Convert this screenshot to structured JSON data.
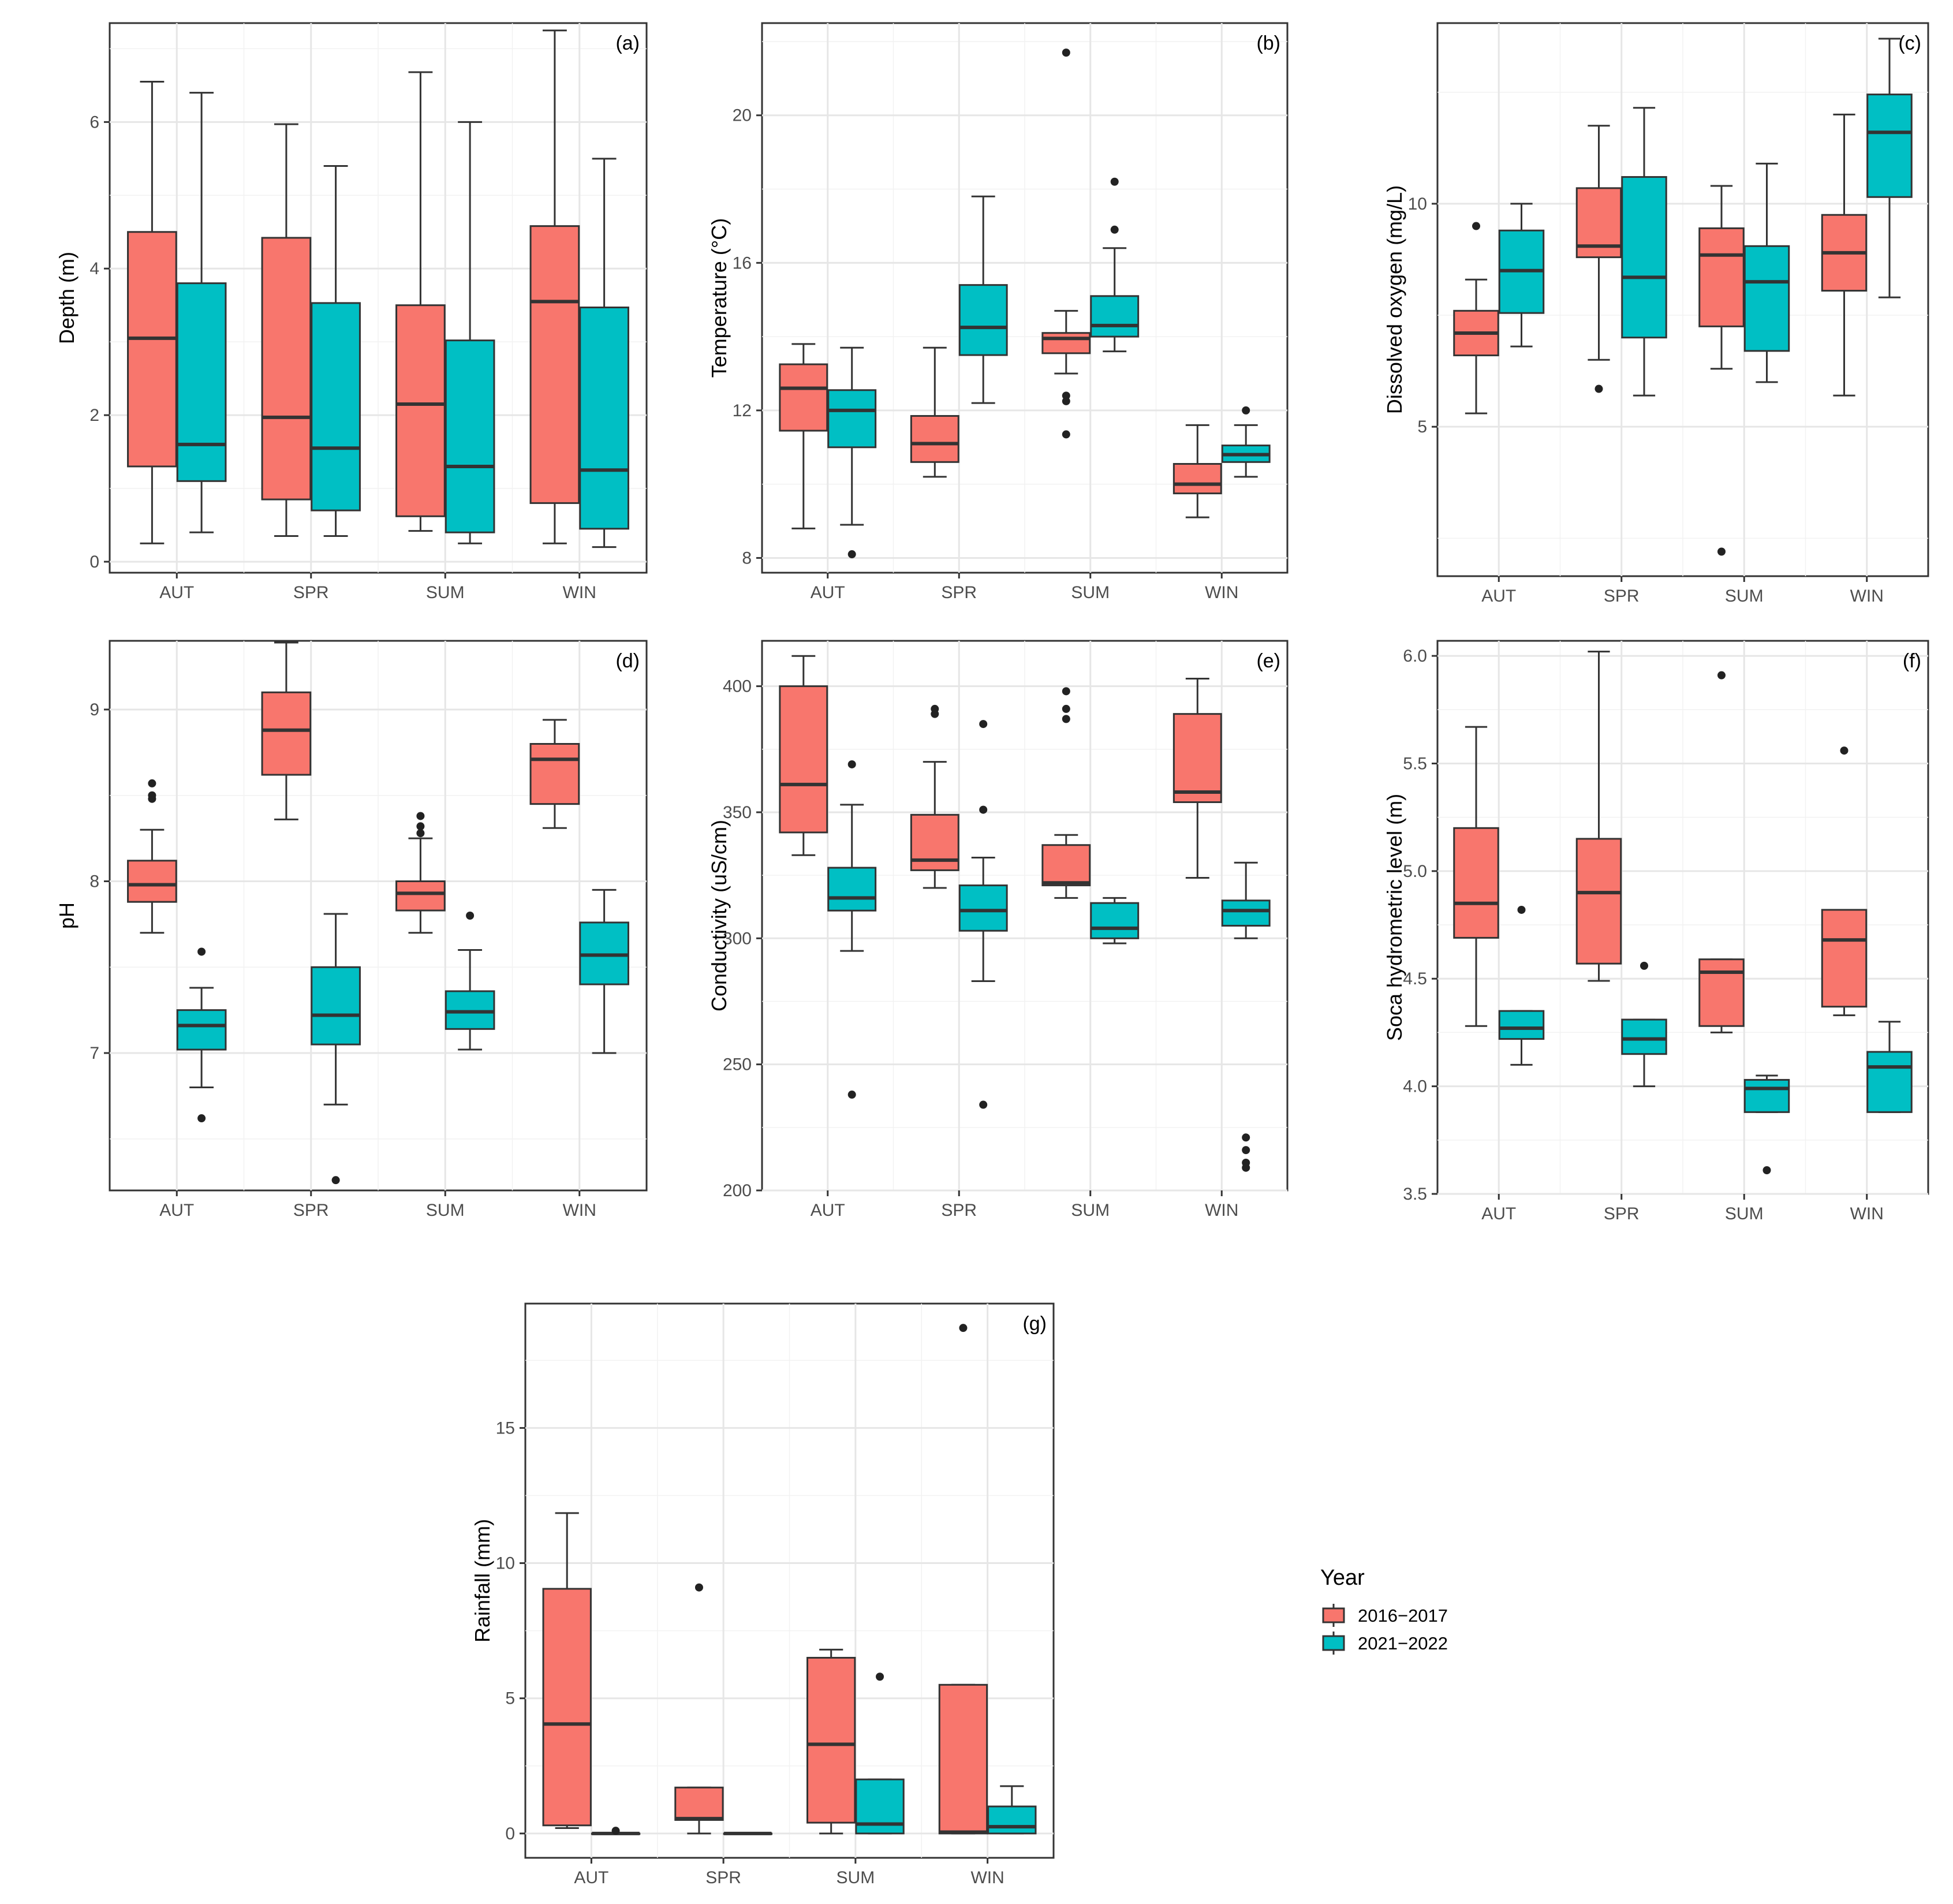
{
  "colors": {
    "s2016": "#F8766D",
    "s2021": "#00BFC4",
    "line": "#333333",
    "point": "#222222"
  },
  "legend": {
    "title": "Year",
    "items": [
      {
        "label": "2016−2017",
        "color": "#F8766D"
      },
      {
        "label": "2021−2022",
        "color": "#00BFC4"
      }
    ]
  },
  "chart_data": [
    {
      "type": "box",
      "tag": "(a)",
      "ylabel": "Depth (m)",
      "categories": [
        "AUT",
        "SPR",
        "SUM",
        "WIN"
      ],
      "yticks": [
        0,
        2,
        4,
        6
      ],
      "ylim": [
        -0.15,
        7.35
      ],
      "series": [
        {
          "name": "2016−2017",
          "boxes": [
            {
              "min": 0.25,
              "q1": 1.3,
              "median": 3.05,
              "q3": 4.5,
              "max": 6.55,
              "outliers": []
            },
            {
              "min": 0.35,
              "q1": 0.85,
              "median": 1.97,
              "q3": 4.42,
              "max": 5.97,
              "outliers": []
            },
            {
              "min": 0.42,
              "q1": 0.62,
              "median": 2.15,
              "q3": 3.5,
              "max": 6.68,
              "outliers": []
            },
            {
              "min": 0.25,
              "q1": 0.8,
              "median": 3.55,
              "q3": 4.58,
              "max": 7.25,
              "outliers": []
            }
          ]
        },
        {
          "name": "2021−2022",
          "boxes": [
            {
              "min": 0.4,
              "q1": 1.1,
              "median": 1.6,
              "q3": 3.8,
              "max": 6.4,
              "outliers": []
            },
            {
              "min": 0.35,
              "q1": 0.7,
              "median": 1.55,
              "q3": 3.53,
              "max": 5.4,
              "outliers": []
            },
            {
              "min": 0.25,
              "q1": 0.4,
              "median": 1.3,
              "q3": 3.02,
              "max": 6.0,
              "outliers": []
            },
            {
              "min": 0.2,
              "q1": 0.45,
              "median": 1.25,
              "q3": 3.47,
              "max": 5.5,
              "outliers": []
            }
          ]
        }
      ]
    },
    {
      "type": "box",
      "tag": "(b)",
      "ylabel": "Temperature (°C)",
      "categories": [
        "AUT",
        "SPR",
        "SUM",
        "WIN"
      ],
      "yticks": [
        8,
        12,
        16,
        20
      ],
      "ylim": [
        7.6,
        22.5
      ],
      "series": [
        {
          "name": "2016−2017",
          "boxes": [
            {
              "min": 8.8,
              "q1": 11.45,
              "median": 12.6,
              "q3": 13.25,
              "max": 13.8,
              "outliers": []
            },
            {
              "min": 10.2,
              "q1": 10.6,
              "median": 11.1,
              "q3": 11.85,
              "max": 13.7,
              "outliers": []
            },
            {
              "min": 13.0,
              "q1": 13.55,
              "median": 13.95,
              "q3": 14.1,
              "max": 14.7,
              "outliers": [
                21.7,
                12.4,
                12.25,
                11.35
              ]
            },
            {
              "min": 9.1,
              "q1": 9.75,
              "median": 10.0,
              "q3": 10.55,
              "max": 11.6,
              "outliers": []
            }
          ]
        },
        {
          "name": "2021−2022",
          "boxes": [
            {
              "min": 8.9,
              "q1": 11.0,
              "median": 12.0,
              "q3": 12.55,
              "max": 13.7,
              "outliers": [
                8.1
              ]
            },
            {
              "min": 12.2,
              "q1": 13.5,
              "median": 14.25,
              "q3": 15.4,
              "max": 17.8,
              "outliers": []
            },
            {
              "min": 13.6,
              "q1": 14.0,
              "median": 14.3,
              "q3": 15.1,
              "max": 16.4,
              "outliers": [
                18.2,
                16.9
              ]
            },
            {
              "min": 10.2,
              "q1": 10.6,
              "median": 10.8,
              "q3": 11.05,
              "max": 11.6,
              "outliers": [
                12.0
              ]
            }
          ]
        }
      ]
    },
    {
      "type": "box",
      "tag": "(c)",
      "ylabel": "Dissolved oxygen (mg/L)",
      "categories": [
        "AUT",
        "SPR",
        "SUM",
        "WIN"
      ],
      "yticks": [
        5,
        10
      ],
      "ylim": [
        1.65,
        14.05
      ],
      "series": [
        {
          "name": "2016−2017",
          "boxes": [
            {
              "min": 5.3,
              "q1": 6.6,
              "median": 7.1,
              "q3": 7.6,
              "max": 8.3,
              "outliers": [
                9.5
              ]
            },
            {
              "min": 6.5,
              "q1": 8.8,
              "median": 9.05,
              "q3": 10.35,
              "max": 11.75,
              "outliers": [
                5.85
              ]
            },
            {
              "min": 6.3,
              "q1": 7.25,
              "median": 8.85,
              "q3": 9.45,
              "max": 10.4,
              "outliers": [
                2.2
              ]
            },
            {
              "min": 5.7,
              "q1": 8.05,
              "median": 8.9,
              "q3": 9.75,
              "max": 12.0,
              "outliers": []
            }
          ]
        },
        {
          "name": "2021−2022",
          "boxes": [
            {
              "min": 6.8,
              "q1": 7.55,
              "median": 8.5,
              "q3": 9.4,
              "max": 10.0,
              "outliers": []
            },
            {
              "min": 5.7,
              "q1": 7.0,
              "median": 8.35,
              "q3": 10.6,
              "max": 12.15,
              "outliers": []
            },
            {
              "min": 6.0,
              "q1": 6.7,
              "median": 8.25,
              "q3": 9.05,
              "max": 10.9,
              "outliers": []
            },
            {
              "min": 7.9,
              "q1": 10.15,
              "median": 11.6,
              "q3": 12.45,
              "max": 13.7,
              "outliers": []
            }
          ]
        }
      ]
    },
    {
      "type": "box",
      "tag": "(d)",
      "ylabel": "pH",
      "categories": [
        "AUT",
        "SPR",
        "SUM",
        "WIN"
      ],
      "yticks": [
        7,
        8,
        9
      ],
      "ylim": [
        6.2,
        9.4
      ],
      "series": [
        {
          "name": "2016−2017",
          "boxes": [
            {
              "min": 7.7,
              "q1": 7.88,
              "median": 7.98,
              "q3": 8.12,
              "max": 8.3,
              "outliers": [
                8.57,
                8.5,
                8.48
              ]
            },
            {
              "min": 8.36,
              "q1": 8.62,
              "median": 8.88,
              "q3": 9.1,
              "max": 9.39,
              "outliers": []
            },
            {
              "min": 7.7,
              "q1": 7.83,
              "median": 7.93,
              "q3": 8.0,
              "max": 8.25,
              "outliers": [
                8.38,
                8.32,
                8.28
              ]
            },
            {
              "min": 8.31,
              "q1": 8.45,
              "median": 8.71,
              "q3": 8.8,
              "max": 8.94,
              "outliers": []
            }
          ]
        },
        {
          "name": "2021−2022",
          "boxes": [
            {
              "min": 6.8,
              "q1": 7.02,
              "median": 7.16,
              "q3": 7.25,
              "max": 7.38,
              "outliers": [
                7.59,
                6.62
              ]
            },
            {
              "min": 6.7,
              "q1": 7.05,
              "median": 7.22,
              "q3": 7.5,
              "max": 7.81,
              "outliers": [
                6.26
              ]
            },
            {
              "min": 7.02,
              "q1": 7.14,
              "median": 7.24,
              "q3": 7.36,
              "max": 7.6,
              "outliers": [
                7.8
              ]
            },
            {
              "min": 7.0,
              "q1": 7.4,
              "median": 7.57,
              "q3": 7.76,
              "max": 7.95,
              "outliers": []
            }
          ]
        }
      ]
    },
    {
      "type": "box",
      "tag": "(e)",
      "ylabel": "Conductivity (uS/cm)",
      "categories": [
        "AUT",
        "SPR",
        "SUM",
        "WIN"
      ],
      "yticks": [
        200,
        250,
        300,
        350,
        400
      ],
      "ylim": [
        200,
        418
      ],
      "series": [
        {
          "name": "2016−2017",
          "boxes": [
            {
              "min": 333,
              "q1": 342,
              "median": 361,
              "q3": 400,
              "max": 412,
              "outliers": []
            },
            {
              "min": 320,
              "q1": 327,
              "median": 331,
              "q3": 349,
              "max": 370,
              "outliers": [
                391,
                389
              ]
            },
            {
              "min": 316,
              "q1": 321,
              "median": 322,
              "q3": 337,
              "max": 341,
              "outliers": [
                398,
                391,
                387
              ]
            },
            {
              "min": 324,
              "q1": 354,
              "median": 358,
              "q3": 389,
              "max": 403,
              "outliers": []
            }
          ]
        },
        {
          "name": "2021−2022",
          "boxes": [
            {
              "min": 295,
              "q1": 311,
              "median": 316,
              "q3": 328,
              "max": 353,
              "outliers": [
                369,
                238
              ]
            },
            {
              "min": 283,
              "q1": 303,
              "median": 311,
              "q3": 321,
              "max": 332,
              "outliers": [
                385,
                351,
                234
              ]
            },
            {
              "min": 298,
              "q1": 300,
              "median": 304,
              "q3": 314,
              "max": 316,
              "outliers": []
            },
            {
              "min": 300,
              "q1": 305,
              "median": 311,
              "q3": 315,
              "max": 330,
              "outliers": [
                221,
                216,
                211,
                209
              ]
            }
          ]
        }
      ]
    },
    {
      "type": "box",
      "tag": "(f)",
      "ylabel": "Soca hydrometric level (m)",
      "categories": [
        "AUT",
        "SPR",
        "SUM",
        "WIN"
      ],
      "yticks": [
        3.5,
        4.0,
        4.5,
        5.0,
        5.5,
        6.0
      ],
      "ytick_labels": [
        "3.5",
        "4.0",
        "4.5",
        "5.0",
        "5.5",
        "6.0"
      ],
      "ylim": [
        3.5,
        6.07
      ],
      "series": [
        {
          "name": "2016−2017",
          "boxes": [
            {
              "min": 4.28,
              "q1": 4.69,
              "median": 4.85,
              "q3": 5.2,
              "max": 5.67,
              "outliers": []
            },
            {
              "min": 4.49,
              "q1": 4.57,
              "median": 4.9,
              "q3": 5.15,
              "max": 6.02,
              "outliers": []
            },
            {
              "min": 4.25,
              "q1": 4.28,
              "median": 4.53,
              "q3": 4.59,
              "max": 4.59,
              "outliers": [
                5.91
              ]
            },
            {
              "min": 4.33,
              "q1": 4.37,
              "median": 4.68,
              "q3": 4.82,
              "max": 4.82,
              "outliers": [
                5.56
              ]
            }
          ]
        },
        {
          "name": "2021−2022",
          "boxes": [
            {
              "min": 4.1,
              "q1": 4.22,
              "median": 4.27,
              "q3": 4.35,
              "max": 4.35,
              "outliers": [
                4.82
              ]
            },
            {
              "min": 4.0,
              "q1": 4.15,
              "median": 4.22,
              "q3": 4.31,
              "max": 4.31,
              "outliers": [
                4.56
              ]
            },
            {
              "min": 3.88,
              "q1": 3.88,
              "median": 3.99,
              "q3": 4.03,
              "max": 4.05,
              "outliers": [
                3.61
              ]
            },
            {
              "min": 3.88,
              "q1": 3.88,
              "median": 4.09,
              "q3": 4.16,
              "max": 4.3,
              "outliers": []
            }
          ]
        }
      ]
    },
    {
      "type": "box",
      "tag": "(g)",
      "ylabel": "Rainfall (mm)",
      "categories": [
        "AUT",
        "SPR",
        "SUM",
        "WIN"
      ],
      "yticks": [
        0,
        5,
        10,
        15
      ],
      "ylim": [
        -0.9,
        19.6
      ],
      "series": [
        {
          "name": "2016−2017",
          "boxes": [
            {
              "min": 0.2,
              "q1": 0.3,
              "median": 4.05,
              "q3": 9.05,
              "max": 11.85,
              "outliers": []
            },
            {
              "min": 0.0,
              "q1": 0.5,
              "median": 0.55,
              "q3": 1.7,
              "max": 1.7,
              "outliers": [
                9.1
              ]
            },
            {
              "min": 0.0,
              "q1": 0.4,
              "median": 3.3,
              "q3": 6.5,
              "max": 6.8,
              "outliers": []
            },
            {
              "min": 0.0,
              "q1": 0.0,
              "median": 0.05,
              "q3": 5.5,
              "max": 5.5,
              "outliers": [
                18.7
              ]
            }
          ]
        },
        {
          "name": "2021−2022",
          "boxes": [
            {
              "min": 0.0,
              "q1": 0.0,
              "median": 0.0,
              "q3": 0.0,
              "max": 0.0,
              "outliers": [
                0.1
              ]
            },
            {
              "min": 0.0,
              "q1": 0.0,
              "median": 0.0,
              "q3": 0.0,
              "max": 0.0,
              "outliers": []
            },
            {
              "min": 0.0,
              "q1": 0.0,
              "median": 0.35,
              "q3": 2.0,
              "max": 2.0,
              "outliers": [
                5.8
              ]
            },
            {
              "min": 0.0,
              "q1": 0.0,
              "median": 0.25,
              "q3": 1.0,
              "max": 1.75,
              "outliers": []
            }
          ]
        }
      ]
    }
  ]
}
